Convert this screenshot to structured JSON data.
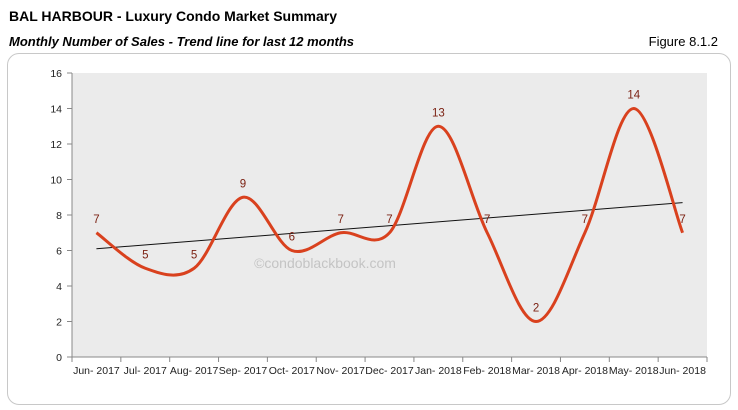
{
  "header": {
    "title": "BAL HARBOUR - Luxury Condo Market Summary",
    "subtitle": "Monthly Number of Sales - Trend line for last 12 months",
    "figure": "Figure 8.1.2"
  },
  "watermark": "©condoblackbook.com",
  "colors": {
    "series": "#d9411e",
    "trend": "#111111",
    "plot_bg": "#ebebeb",
    "label": "#7a1f10"
  },
  "chart_data": {
    "type": "line",
    "categories": [
      "Jun- 2017",
      "Jul- 2017",
      "Aug- 2017",
      "Sep- 2017",
      "Oct- 2017",
      "Nov- 2017",
      "Dec- 2017",
      "Jan- 2018",
      "Feb- 2018",
      "Mar- 2018",
      "Apr- 2018",
      "May- 2018",
      "Jun- 2018"
    ],
    "series": [
      {
        "values": [
          7,
          5,
          5,
          9,
          6,
          7,
          7,
          13,
          7,
          2,
          7,
          14,
          7
        ],
        "smooth": true
      }
    ],
    "trendline": {
      "type": "linear",
      "start": 6.1,
      "end": 8.7
    },
    "ylim": [
      0,
      16
    ],
    "yticks": [
      0,
      2,
      4,
      6,
      8,
      10,
      12,
      14,
      16
    ],
    "data_labels": true,
    "grid": false,
    "legend": "none"
  }
}
